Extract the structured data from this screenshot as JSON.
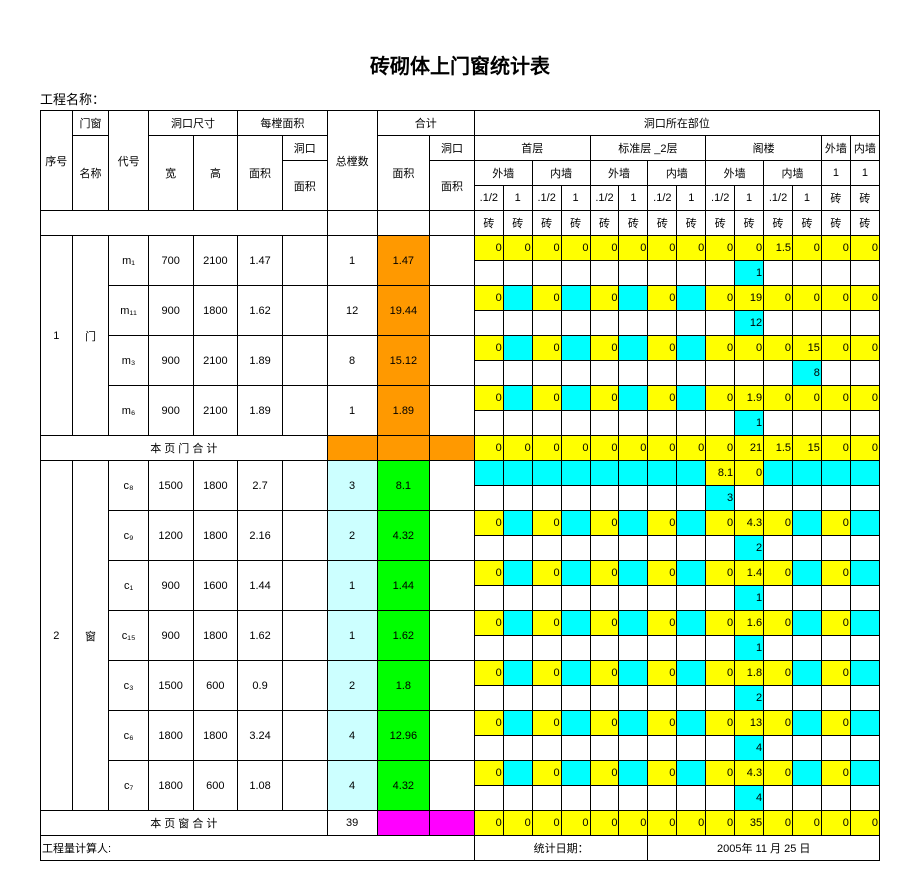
{
  "title": "砖砌体上门窗统计表",
  "project_label": "工程名称：",
  "footer_calc": "工程量计算人:",
  "footer_date_label": "统计日期：",
  "footer_date": "2005年 11 月 25 日",
  "headers": {
    "seq": "序号",
    "name": "门窗",
    "name2": "名称",
    "code": "代号",
    "opening": "洞口尺寸",
    "each": "每樘面积",
    "w": "宽",
    "h": "高",
    "mj": "面积",
    "dk": "洞口",
    "mj2": "面积",
    "total": "总樘数",
    "sum": "合计",
    "amj": "面积",
    "dkmj": "洞口",
    "mj3": "面积",
    "location": "洞口所在部位",
    "first": "首层",
    "std": "标准层 _2层",
    "attic": "阁楼",
    "outer": "外墙",
    "inner": "内墙",
    "half": ".1/2",
    "one": "1",
    "brick": "砖"
  },
  "doors_subtotal_label": "本 页 门 合 计",
  "windows_subtotal_label": "本 页 窗 合 计",
  "windows_subtotal_total": "39",
  "rows": [
    {
      "seq": "1",
      "name": "门",
      "code": "m₁",
      "w": "700",
      "h": "2100",
      "mj": "1.47",
      "total": "1",
      "amj": "1.47",
      "cells": [
        "0",
        "0",
        "0",
        "0",
        "0",
        "0",
        "0",
        "0",
        "0",
        "0",
        "1.5",
        "0",
        "0",
        "0"
      ],
      "sub": [
        "",
        "",
        "",
        "",
        "",
        "",
        "",
        "",
        "",
        "1",
        "",
        "",
        "",
        ""
      ]
    },
    {
      "code": "m₁₁",
      "w": "900",
      "h": "1800",
      "mj": "1.62",
      "total": "12",
      "amj": "19.44",
      "cells": [
        "0",
        "",
        "0",
        "",
        "0",
        "",
        "0",
        "",
        "0",
        "19",
        "0",
        "0",
        "0",
        "0"
      ],
      "sub": [
        "",
        "",
        "",
        "",
        "",
        "",
        "",
        "",
        "",
        "12",
        "",
        "",
        "",
        ""
      ]
    },
    {
      "code": "m₃",
      "w": "900",
      "h": "2100",
      "mj": "1.89",
      "total": "8",
      "amj": "15.12",
      "cells": [
        "0",
        "",
        "0",
        "",
        "0",
        "",
        "0",
        "",
        "0",
        "0",
        "0",
        "15",
        "0",
        "0"
      ],
      "sub": [
        "",
        "",
        "",
        "",
        "",
        "",
        "",
        "",
        "",
        "",
        "",
        "8",
        "",
        ""
      ]
    },
    {
      "code": "m₆",
      "w": "900",
      "h": "2100",
      "mj": "1.89",
      "total": "1",
      "amj": "1.89",
      "cells": [
        "0",
        "",
        "0",
        "",
        "0",
        "",
        "0",
        "",
        "0",
        "1.9",
        "0",
        "0",
        "0",
        "0"
      ],
      "sub": [
        "",
        "",
        "",
        "",
        "",
        "",
        "",
        "",
        "",
        "1",
        "",
        "",
        "",
        ""
      ]
    }
  ],
  "door_subtotal_cells": [
    "0",
    "0",
    "0",
    "0",
    "0",
    "0",
    "0",
    "0",
    "0",
    "21",
    "1.5",
    "15",
    "0",
    "0"
  ],
  "windows": [
    {
      "seq": "2",
      "name": "窗",
      "code": "c₈",
      "w": "1500",
      "h": "1800",
      "mj": "2.7",
      "total": "3",
      "amj": "8.1",
      "cells": [
        "",
        "",
        "",
        "",
        "",
        "",
        "",
        "",
        "8.1",
        "0",
        "",
        "",
        "",
        ""
      ],
      "sub": [
        "",
        "",
        "",
        "",
        "",
        "",
        "",
        "",
        "3",
        "",
        "",
        "",
        "",
        ""
      ]
    },
    {
      "code": "c₉",
      "w": "1200",
      "h": "1800",
      "mj": "2.16",
      "total": "2",
      "amj": "4.32",
      "cells": [
        "0",
        "",
        "0",
        "",
        "0",
        "",
        "0",
        "",
        "0",
        "4.3",
        "0",
        "",
        "0",
        ""
      ],
      "sub": [
        "",
        "",
        "",
        "",
        "",
        "",
        "",
        "",
        "",
        "2",
        "",
        "",
        "",
        ""
      ]
    },
    {
      "code": "c₁",
      "w": "900",
      "h": "1600",
      "mj": "1.44",
      "total": "1",
      "amj": "1.44",
      "cells": [
        "0",
        "",
        "0",
        "",
        "0",
        "",
        "0",
        "",
        "0",
        "1.4",
        "0",
        "",
        "0",
        ""
      ],
      "sub": [
        "",
        "",
        "",
        "",
        "",
        "",
        "",
        "",
        "",
        "1",
        "",
        "",
        "",
        ""
      ]
    },
    {
      "code": "c₁₅",
      "w": "900",
      "h": "1800",
      "mj": "1.62",
      "total": "1",
      "amj": "1.62",
      "cells": [
        "0",
        "",
        "0",
        "",
        "0",
        "",
        "0",
        "",
        "0",
        "1.6",
        "0",
        "",
        "0",
        ""
      ],
      "sub": [
        "",
        "",
        "",
        "",
        "",
        "",
        "",
        "",
        "",
        "1",
        "",
        "",
        "",
        ""
      ]
    },
    {
      "code": "c₃",
      "w": "1500",
      "h": "600",
      "mj": "0.9",
      "total": "2",
      "amj": "1.8",
      "cells": [
        "0",
        "",
        "0",
        "",
        "0",
        "",
        "0",
        "",
        "0",
        "1.8",
        "0",
        "",
        "0",
        ""
      ],
      "sub": [
        "",
        "",
        "",
        "",
        "",
        "",
        "",
        "",
        "",
        "2",
        "",
        "",
        "",
        ""
      ]
    },
    {
      "code": "c₆",
      "w": "1800",
      "h": "1800",
      "mj": "3.24",
      "total": "4",
      "amj": "12.96",
      "cells": [
        "0",
        "",
        "0",
        "",
        "0",
        "",
        "0",
        "",
        "0",
        "13",
        "0",
        "",
        "0",
        ""
      ],
      "sub": [
        "",
        "",
        "",
        "",
        "",
        "",
        "",
        "",
        "",
        "4",
        "",
        "",
        "",
        ""
      ]
    },
    {
      "code": "c₇",
      "w": "1800",
      "h": "600",
      "mj": "1.08",
      "total": "4",
      "amj": "4.32",
      "cells": [
        "0",
        "",
        "0",
        "",
        "0",
        "",
        "0",
        "",
        "0",
        "4.3",
        "0",
        "",
        "0",
        ""
      ],
      "sub": [
        "",
        "",
        "",
        "",
        "",
        "",
        "",
        "",
        "",
        "4",
        "",
        "",
        "",
        ""
      ]
    }
  ],
  "window_subtotal_cells": [
    "0",
    "0",
    "0",
    "0",
    "0",
    "0",
    "0",
    "0",
    "0",
    "35",
    "0",
    "0",
    "0",
    "0"
  ]
}
